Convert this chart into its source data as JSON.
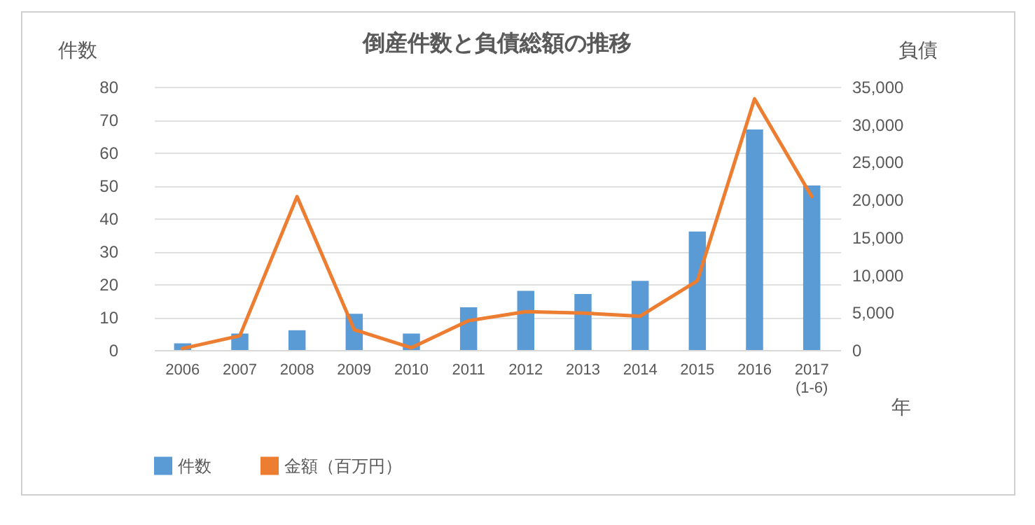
{
  "chart_data": {
    "type": "bar",
    "title": "倒産件数と負債総額の推移",
    "xlabel": "年",
    "ylabel": "件数",
    "y2label": "負債",
    "categories": [
      "2006",
      "2007",
      "2008",
      "2009",
      "2010",
      "2011",
      "2012",
      "2013",
      "2014",
      "2015",
      "2016",
      "2017\n(1-6)"
    ],
    "series": [
      {
        "name": "件数",
        "color": "#5b9bd5",
        "values": [
          2,
          5,
          6,
          11,
          5,
          13,
          18,
          17,
          21,
          36,
          67,
          50
        ]
      },
      {
        "name": "金額（百万円）",
        "type": "line",
        "axis": "y2",
        "color": "#ed7d31",
        "values": [
          200,
          1900,
          20400,
          2700,
          300,
          3900,
          5100,
          4900,
          4500,
          9200,
          33400,
          20400
        ]
      }
    ],
    "ylim": [
      0,
      80
    ],
    "yticks": [
      0,
      10,
      20,
      30,
      40,
      50,
      60,
      70,
      80
    ],
    "y2lim": [
      0,
      35000
    ],
    "y2ticks": [
      0,
      {
        "value": 5000,
        "label": "5,000"
      },
      {
        "value": 10000,
        "label": "10,000"
      },
      {
        "value": 15000,
        "label": "15,000"
      },
      {
        "value": 20000,
        "label": "20,000"
      },
      {
        "value": 25000,
        "label": "25,000"
      },
      {
        "value": 30000,
        "label": "30,000"
      },
      {
        "value": 35000,
        "label": "35,000"
      }
    ],
    "grid": "y",
    "legend": "bottom"
  }
}
